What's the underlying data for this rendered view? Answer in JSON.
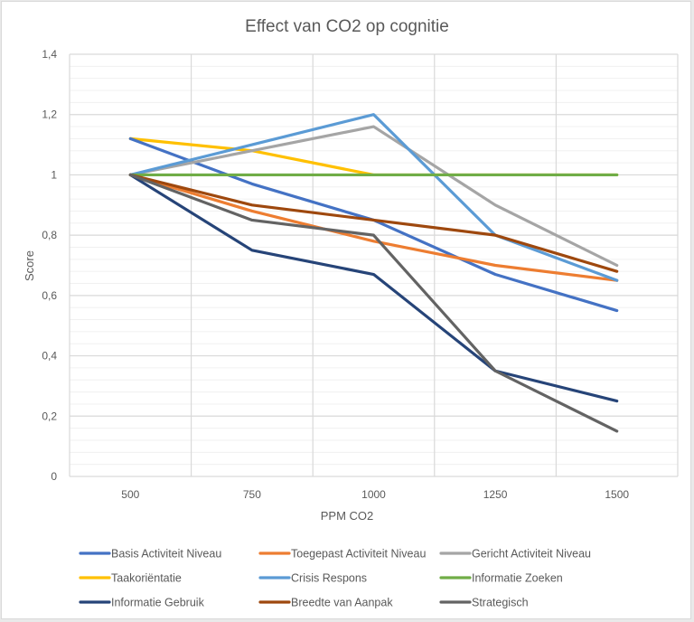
{
  "chart_data": {
    "type": "line",
    "title": "Effect van CO2 op cognitie",
    "xlabel": "PPM CO2",
    "ylabel": "Score",
    "categories": [
      "500",
      "750",
      "1000",
      "1250",
      "1500"
    ],
    "ylim": [
      0,
      1.4
    ],
    "y_major_step": 0.2,
    "y_minor_step": 0.04,
    "y_tick_labels": [
      "0",
      "0,2",
      "0,4",
      "0,6",
      "0,8",
      "1",
      "1,2",
      "1,4"
    ],
    "grid": true,
    "legend_position": "bottom",
    "series": [
      {
        "name": "Basis Activiteit Niveau",
        "color": "#4472C4",
        "values": [
          1.12,
          0.97,
          0.85,
          0.67,
          0.55
        ]
      },
      {
        "name": "Toegepast Activiteit Niveau",
        "color": "#ED7D31",
        "values": [
          1.0,
          0.88,
          0.78,
          0.7,
          0.65
        ]
      },
      {
        "name": "Gericht Activiteit Niveau",
        "color": "#A5A5A5",
        "values": [
          1.0,
          1.08,
          1.16,
          0.9,
          0.7
        ]
      },
      {
        "name": "Taakoriëntatie",
        "color": "#FFC000",
        "values": [
          1.12,
          1.08,
          1.0,
          1.0,
          1.0
        ]
      },
      {
        "name": "Crisis Respons",
        "color": "#5B9BD5",
        "values": [
          1.0,
          1.1,
          1.2,
          0.8,
          0.65
        ]
      },
      {
        "name": "Informatie Zoeken",
        "color": "#70AD47",
        "values": [
          1.0,
          1.0,
          1.0,
          1.0,
          1.0
        ]
      },
      {
        "name": "Informatie Gebruik",
        "color": "#264478",
        "values": [
          1.0,
          0.75,
          0.67,
          0.35,
          0.25
        ]
      },
      {
        "name": "Breedte van Aanpak",
        "color": "#9E480E",
        "values": [
          1.0,
          0.9,
          0.85,
          0.8,
          0.68
        ]
      },
      {
        "name": "Strategisch",
        "color": "#636363",
        "values": [
          1.0,
          0.85,
          0.8,
          0.35,
          0.15
        ]
      }
    ]
  }
}
